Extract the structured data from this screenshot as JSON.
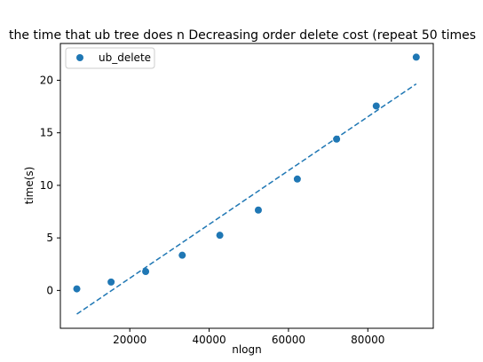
{
  "chart_data": {
    "type": "scatter",
    "title": "the time that ub tree does n Decreasing order delete cost (repeat 50 times",
    "xlabel": "nlogn",
    "ylabel": "time(s)",
    "xlim": [
      2500,
      96500
    ],
    "ylim": [
      -3.6,
      23.5
    ],
    "xticks": [
      20000,
      40000,
      60000,
      80000
    ],
    "xtick_labels": [
      "20000",
      "40000",
      "60000",
      "80000"
    ],
    "yticks": [
      0,
      5,
      10,
      15,
      20
    ],
    "ytick_labels": [
      "0",
      "5",
      "10",
      "15",
      "20"
    ],
    "grid": false,
    "legend_position": "top-left",
    "series": [
      {
        "name": "ub_delete",
        "kind": "scatter",
        "color": "#1f77b4",
        "x": [
          6644,
          15287,
          24000,
          33219,
          42697,
          52400,
          62228,
          72130,
          82124,
          92203
        ],
        "y": [
          0.15,
          0.8,
          1.8,
          3.35,
          5.25,
          7.65,
          10.6,
          14.4,
          17.55,
          22.2
        ]
      },
      {
        "name": "",
        "kind": "line",
        "style": "dashed",
        "color": "#1f77b4",
        "x": [
          6644,
          92203
        ],
        "y": [
          -2.25,
          19.65
        ]
      }
    ]
  }
}
